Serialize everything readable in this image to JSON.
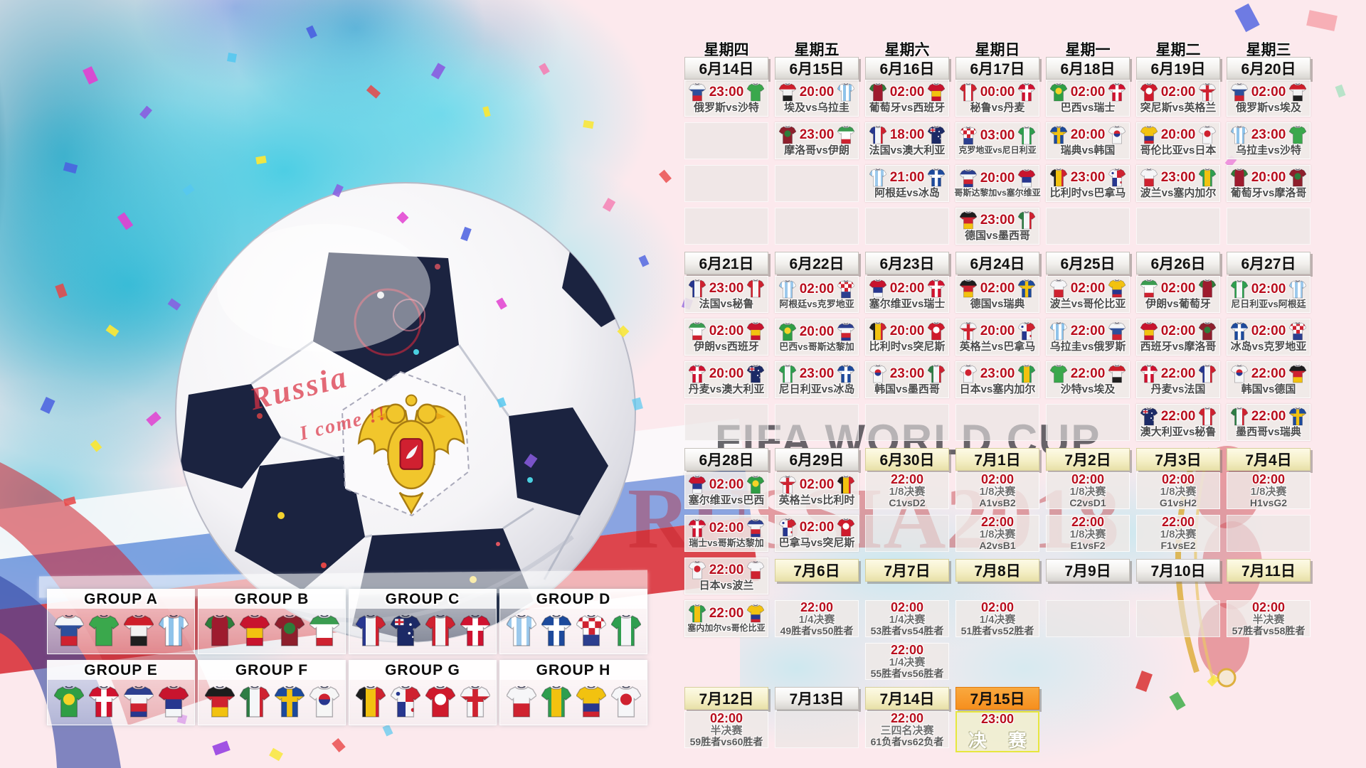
{
  "watermark": {
    "line1": "FIFA WORLD CUP",
    "line2": "RUSSIA2018"
  },
  "ball_text": {
    "line1": "Russia",
    "line2": "I come !!"
  },
  "weekdays": [
    "星期四",
    "星期五",
    "星期六",
    "星期日",
    "星期一",
    "星期二",
    "星期三"
  ],
  "colors": {
    "time_red": "#b90f1e",
    "stage_gray": "#707070",
    "label_gray": "#4c4c4c",
    "yellow_button": "#f4eec4",
    "orange_button": "#f68f1e",
    "final_border": "#e7e73e",
    "background_pink": "#fce9ed",
    "splash_cyan": "#46cde4"
  },
  "teams": {
    "russia": {
      "name": "俄罗斯",
      "jersey": {
        "type": "bands",
        "colors": [
          "#f4f6f8",
          "#2d4f9b",
          "#cf2230"
        ]
      }
    },
    "saudi": {
      "name": "沙特",
      "jersey": {
        "type": "solid",
        "colors": [
          "#3aa84c"
        ]
      }
    },
    "egypt": {
      "name": "埃及",
      "jersey": {
        "type": "bands",
        "colors": [
          "#ce1e2a",
          "#f2f2f2",
          "#1f1f1f"
        ]
      }
    },
    "uruguay": {
      "name": "乌拉圭",
      "jersey": {
        "type": "stripes",
        "colors": [
          "#8fc3ea",
          "#ffffff"
        ]
      }
    },
    "portugal": {
      "name": "葡萄牙",
      "jersey": {
        "type": "solid",
        "colors": [
          "#9e1b2e"
        ],
        "sleeves": "#2e7d3a"
      }
    },
    "spain": {
      "name": "西班牙",
      "jersey": {
        "type": "bands",
        "colors": [
          "#c8142e",
          "#f2c210",
          "#c8142e"
        ],
        "fracs": [
          0.42,
          0.72
        ]
      }
    },
    "morocco": {
      "name": "摩洛哥",
      "jersey": {
        "type": "circle",
        "colors": [
          "#8e1f2c",
          "#2e7d3a"
        ]
      }
    },
    "iran": {
      "name": "伊朗",
      "jersey": {
        "type": "bands",
        "colors": [
          "#3a9c50",
          "#ffffff",
          "#cf2230"
        ],
        "fracs": [
          0.3,
          0.72
        ]
      }
    },
    "france": {
      "name": "法国",
      "jersey": {
        "type": "vbands",
        "colors": [
          "#27378f",
          "#f4f6f8",
          "#cf2230"
        ]
      }
    },
    "australia": {
      "name": "澳大利亚",
      "jersey": {
        "type": "aus",
        "colors": [
          "#1c2a66",
          "#ffffff"
        ]
      }
    },
    "peru": {
      "name": "秘鲁",
      "jersey": {
        "type": "vbands",
        "colors": [
          "#cf2230",
          "#f6f6f6",
          "#cf2230"
        ]
      }
    },
    "denmark": {
      "name": "丹麦",
      "jersey": {
        "type": "cross",
        "colors": [
          "#cf1230",
          "#ffffff"
        ]
      }
    },
    "argentina": {
      "name": "阿根廷",
      "jersey": {
        "type": "stripes",
        "colors": [
          "#9cc9ec",
          "#ffffff"
        ]
      }
    },
    "iceland": {
      "name": "冰岛",
      "jersey": {
        "type": "cross",
        "colors": [
          "#1d4a9c",
          "#ffffff"
        ]
      }
    },
    "croatia": {
      "name": "克罗地亚",
      "jersey": {
        "type": "croatia",
        "colors": [
          "#ffffff",
          "#cf2230",
          "#2c3f8f"
        ]
      }
    },
    "nigeria": {
      "name": "尼日利亚",
      "jersey": {
        "type": "vbands",
        "colors": [
          "#2f9e4f",
          "#f6f6f8",
          "#2f9e4f"
        ]
      }
    },
    "brazil": {
      "name": "巴西",
      "jersey": {
        "type": "circle",
        "colors": [
          "#2f9e45",
          "#f5d327"
        ]
      }
    },
    "switzerland": {
      "name": "瑞士",
      "jersey": {
        "type": "cross",
        "colors": [
          "#d0122e",
          "#ffffff"
        ]
      }
    },
    "costarica": {
      "name": "哥斯达黎加",
      "jersey": {
        "type": "bands",
        "colors": [
          "#2c3f8f",
          "#f4f6f8",
          "#cf2230",
          "#27378f"
        ],
        "fracs": [
          0.28,
          0.55,
          0.8
        ]
      }
    },
    "serbia": {
      "name": "塞尔维亚",
      "jersey": {
        "type": "bands",
        "colors": [
          "#c8142e",
          "#27378f",
          "#f4f6f8"
        ],
        "fracs": [
          0.42,
          0.72
        ]
      }
    },
    "germany": {
      "name": "德国",
      "jersey": {
        "type": "bands",
        "colors": [
          "#1d1d1d",
          "#cf2230",
          "#f2c210"
        ]
      }
    },
    "mexico": {
      "name": "墨西哥",
      "jersey": {
        "type": "vbands",
        "colors": [
          "#2f7d45",
          "#f4f6f8",
          "#cf2230"
        ]
      }
    },
    "sweden": {
      "name": "瑞典",
      "jersey": {
        "type": "cross",
        "colors": [
          "#1d4a9c",
          "#f2c210"
        ]
      }
    },
    "korea": {
      "name": "韩国",
      "jersey": {
        "type": "circle2",
        "colors": [
          "#f6f6f6",
          "#cf2230",
          "#27378f"
        ]
      }
    },
    "belgium": {
      "name": "比利时",
      "jersey": {
        "type": "vbands",
        "colors": [
          "#1d1d1d",
          "#f2c210",
          "#cf2230"
        ]
      }
    },
    "panama": {
      "name": "巴拿马",
      "jersey": {
        "type": "panama",
        "colors": [
          "#f6f6f8",
          "#cf2230",
          "#27378f"
        ]
      }
    },
    "tunisia": {
      "name": "突尼斯",
      "jersey": {
        "type": "circle",
        "colors": [
          "#cf1a2c",
          "#ffffff"
        ]
      }
    },
    "england": {
      "name": "英格兰",
      "jersey": {
        "type": "cross",
        "colors": [
          "#f6f6f8",
          "#cf2230"
        ]
      }
    },
    "poland": {
      "name": "波兰",
      "jersey": {
        "type": "bands",
        "colors": [
          "#f6f6f8",
          "#cf2230"
        ],
        "fracs": [
          0.55
        ]
      }
    },
    "senegal": {
      "name": "塞内加尔",
      "jersey": {
        "type": "vbands",
        "colors": [
          "#2f9e4f",
          "#f2c210",
          "#2f9e4f"
        ]
      }
    },
    "colombia": {
      "name": "哥伦比亚",
      "jersey": {
        "type": "bands",
        "colors": [
          "#f2c210",
          "#27378f",
          "#cf2230"
        ],
        "fracs": [
          0.55,
          0.8
        ]
      }
    },
    "japan": {
      "name": "日本",
      "jersey": {
        "type": "circle",
        "colors": [
          "#f6f6f8",
          "#cf2230"
        ]
      }
    }
  },
  "calendar": {
    "date_rows": [
      {
        "row": 2,
        "col": 1,
        "dates": [
          {
            "label": "6月14日",
            "style": "plain"
          },
          {
            "label": "6月15日",
            "style": "plain"
          },
          {
            "label": "6月16日",
            "style": "plain"
          },
          {
            "label": "6月17日",
            "style": "plain"
          },
          {
            "label": "6月18日",
            "style": "plain"
          },
          {
            "label": "6月19日",
            "style": "plain"
          },
          {
            "label": "6月20日",
            "style": "plain"
          }
        ]
      },
      {
        "row": 7,
        "col": 1,
        "dates": [
          {
            "label": "6月21日",
            "style": "plain"
          },
          {
            "label": "6月22日",
            "style": "plain"
          },
          {
            "label": "6月23日",
            "style": "plain"
          },
          {
            "label": "6月24日",
            "style": "plain"
          },
          {
            "label": "6月25日",
            "style": "plain"
          },
          {
            "label": "6月26日",
            "style": "plain"
          },
          {
            "label": "6月27日",
            "style": "plain"
          }
        ]
      },
      {
        "row": 12,
        "col": 1,
        "dates": [
          {
            "label": "6月28日",
            "style": "plain"
          },
          {
            "label": "6月29日",
            "style": "plain"
          },
          {
            "label": "6月30日",
            "style": "yellow"
          },
          {
            "label": "7月1日",
            "style": "yellow"
          },
          {
            "label": "7月2日",
            "style": "yellow"
          },
          {
            "label": "7月3日",
            "style": "yellow"
          },
          {
            "label": "7月4日",
            "style": "yellow"
          }
        ]
      },
      {
        "row": 15,
        "col": 2,
        "dates": [
          {
            "label": "7月6日",
            "style": "yellow"
          },
          {
            "label": "7月7日",
            "style": "yellow"
          },
          {
            "label": "7月8日",
            "style": "yellow"
          },
          {
            "label": "7月9日",
            "style": "plain"
          },
          {
            "label": "7月10日",
            "style": "plain"
          },
          {
            "label": "7月11日",
            "style": "yellow"
          }
        ]
      },
      {
        "row": 18,
        "col": 1,
        "dates": [
          {
            "label": "7月12日",
            "style": "yellow"
          },
          {
            "label": "7月13日",
            "style": "plain"
          },
          {
            "label": "7月14日",
            "style": "yellow"
          },
          {
            "label": "7月15日",
            "style": "orange"
          }
        ]
      }
    ],
    "cell_rows": [
      {
        "row": 3,
        "cells": [
          {
            "t": "23:00",
            "h": "russia",
            "a": "saudi"
          },
          {
            "t": "20:00",
            "h": "egypt",
            "a": "uruguay"
          },
          {
            "t": "02:00",
            "h": "portugal",
            "a": "spain"
          },
          {
            "t": "00:00",
            "h": "peru",
            "a": "denmark"
          },
          {
            "t": "02:00",
            "h": "brazil",
            "a": "switzerland"
          },
          {
            "t": "02:00",
            "h": "tunisia",
            "a": "england"
          },
          {
            "t": "02:00",
            "h": "russia",
            "a": "egypt"
          }
        ]
      },
      {
        "row": 4,
        "cells": [
          {
            "e": 1
          },
          {
            "t": "23:00",
            "h": "morocco",
            "a": "iran"
          },
          {
            "t": "18:00",
            "h": "france",
            "a": "australia"
          },
          {
            "t": "03:00",
            "h": "croatia",
            "a": "nigeria"
          },
          {
            "t": "20:00",
            "h": "sweden",
            "a": "korea"
          },
          {
            "t": "20:00",
            "h": "colombia",
            "a": "japan"
          },
          {
            "t": "23:00",
            "h": "uruguay",
            "a": "saudi"
          }
        ]
      },
      {
        "row": 5,
        "cells": [
          {
            "e": 1
          },
          {
            "e": 1
          },
          {
            "t": "21:00",
            "h": "argentina",
            "a": "iceland"
          },
          {
            "t": "20:00",
            "h": "costarica",
            "a": "serbia"
          },
          {
            "t": "23:00",
            "h": "belgium",
            "a": "panama"
          },
          {
            "t": "23:00",
            "h": "poland",
            "a": "senegal"
          },
          {
            "t": "20:00",
            "h": "portugal",
            "a": "morocco"
          }
        ]
      },
      {
        "row": 6,
        "cells": [
          {
            "e": 1
          },
          {
            "e": 1
          },
          {
            "e": 1
          },
          {
            "t": "23:00",
            "h": "germany",
            "a": "mexico"
          },
          {
            "e": 1
          },
          {
            "e": 1
          },
          {
            "e": 1
          }
        ]
      },
      {
        "row": 8,
        "cells": [
          {
            "t": "23:00",
            "h": "france",
            "a": "peru"
          },
          {
            "t": "02:00",
            "h": "argentina",
            "a": "croatia"
          },
          {
            "t": "02:00",
            "h": "serbia",
            "a": "switzerland"
          },
          {
            "t": "02:00",
            "h": "germany",
            "a": "sweden"
          },
          {
            "t": "02:00",
            "h": "poland",
            "a": "colombia"
          },
          {
            "t": "02:00",
            "h": "iran",
            "a": "portugal"
          },
          {
            "t": "02:00",
            "h": "nigeria",
            "a": "argentina"
          }
        ]
      },
      {
        "row": 9,
        "cells": [
          {
            "t": "02:00",
            "h": "iran",
            "a": "spain"
          },
          {
            "t": "20:00",
            "h": "brazil",
            "a": "costarica"
          },
          {
            "t": "20:00",
            "h": "belgium",
            "a": "tunisia"
          },
          {
            "t": "20:00",
            "h": "england",
            "a": "panama"
          },
          {
            "t": "22:00",
            "h": "uruguay",
            "a": "russia"
          },
          {
            "t": "02:00",
            "h": "spain",
            "a": "morocco"
          },
          {
            "t": "02:00",
            "h": "iceland",
            "a": "croatia"
          }
        ]
      },
      {
        "row": 10,
        "cells": [
          {
            "t": "20:00",
            "h": "denmark",
            "a": "australia"
          },
          {
            "t": "23:00",
            "h": "nigeria",
            "a": "iceland"
          },
          {
            "t": "23:00",
            "h": "korea",
            "a": "mexico"
          },
          {
            "t": "23:00",
            "h": "japan",
            "a": "senegal"
          },
          {
            "t": "22:00",
            "h": "saudi",
            "a": "egypt"
          },
          {
            "t": "22:00",
            "h": "denmark",
            "a": "france"
          },
          {
            "t": "22:00",
            "h": "korea",
            "a": "germany"
          }
        ]
      },
      {
        "row": 11,
        "cells": [
          {
            "e": 1
          },
          {
            "e": 1
          },
          {
            "e": 1
          },
          {
            "e": 1
          },
          {
            "e": 1
          },
          {
            "t": "22:00",
            "h": "australia",
            "a": "peru"
          },
          {
            "t": "22:00",
            "h": "mexico",
            "a": "sweden"
          }
        ]
      },
      {
        "row": 13,
        "cells": [
          {
            "t": "02:00",
            "h": "serbia",
            "a": "brazil"
          },
          {
            "t": "02:00",
            "h": "england",
            "a": "belgium"
          },
          {
            "t": "22:00",
            "s": "1/8决赛",
            "m": "C1vsD2"
          },
          {
            "t": "02:00",
            "s": "1/8决赛",
            "m": "A1vsB2"
          },
          {
            "t": "02:00",
            "s": "1/8决赛",
            "m": "C2vsD1"
          },
          {
            "t": "02:00",
            "s": "1/8决赛",
            "m": "G1vsH2"
          },
          {
            "t": "02:00",
            "s": "1/8决赛",
            "m": "H1vsG2"
          }
        ]
      },
      {
        "row": 14,
        "cells": [
          {
            "t": "02:00",
            "h": "switzerland",
            "a": "costarica"
          },
          {
            "t": "02:00",
            "h": "panama",
            "a": "tunisia"
          },
          {
            "e": 1
          },
          {
            "t": "22:00",
            "s": "1/8决赛",
            "m": "A2vsB1"
          },
          {
            "t": "22:00",
            "s": "1/8决赛",
            "m": "E1vsF2"
          },
          {
            "t": "22:00",
            "s": "1/8决赛",
            "m": "F1vsE2"
          },
          {
            "e": 1
          }
        ]
      },
      {
        "row": 15,
        "cells": [
          {
            "t": "22:00",
            "h": "japan",
            "a": "poland"
          },
          null,
          null,
          null,
          null,
          null,
          null
        ]
      },
      {
        "row": 16,
        "cells": [
          {
            "t": "22:00",
            "h": "senegal",
            "a": "colombia"
          },
          {
            "t": "22:00",
            "s": "1/4决赛",
            "m": "49胜者vs50胜者"
          },
          {
            "t": "02:00",
            "s": "1/4决赛",
            "m": "53胜者vs54胜者"
          },
          {
            "t": "02:00",
            "s": "1/4决赛",
            "m": "51胜者vs52胜者"
          },
          {
            "e": 1
          },
          {
            "e": 1
          },
          {
            "t": "02:00",
            "s": "半决赛",
            "m": "57胜者vs58胜者"
          }
        ]
      },
      {
        "row": 17,
        "cells": [
          null,
          null,
          {
            "t": "22:00",
            "s": "1/4决赛",
            "m": "55胜者vs56胜者"
          },
          null,
          null,
          null,
          null
        ]
      },
      {
        "row": 19,
        "cells": [
          {
            "t": "02:00",
            "s": "半决赛",
            "m": "59胜者vs60胜者"
          },
          {
            "e": 1
          },
          {
            "t": "22:00",
            "s": "三四名决赛",
            "m": "61负者vs62负者"
          },
          {
            "t": "23:00",
            "s": "决 赛",
            "f": 1
          }
        ]
      }
    ]
  },
  "groups": [
    {
      "label": "GROUP A",
      "teams": [
        "russia",
        "saudi",
        "egypt",
        "uruguay"
      ]
    },
    {
      "label": "GROUP B",
      "teams": [
        "portugal",
        "spain",
        "morocco",
        "iran"
      ]
    },
    {
      "label": "GROUP C",
      "teams": [
        "france",
        "australia",
        "peru",
        "denmark"
      ]
    },
    {
      "label": "GROUP D",
      "teams": [
        "argentina",
        "iceland",
        "croatia",
        "nigeria"
      ]
    },
    {
      "label": "GROUP E",
      "teams": [
        "brazil",
        "switzerland",
        "costarica",
        "serbia"
      ]
    },
    {
      "label": "GROUP F",
      "teams": [
        "germany",
        "mexico",
        "sweden",
        "korea"
      ]
    },
    {
      "label": "GROUP G",
      "teams": [
        "belgium",
        "panama",
        "tunisia",
        "england"
      ]
    },
    {
      "label": "GROUP H",
      "teams": [
        "poland",
        "senegal",
        "colombia",
        "japan"
      ]
    }
  ]
}
